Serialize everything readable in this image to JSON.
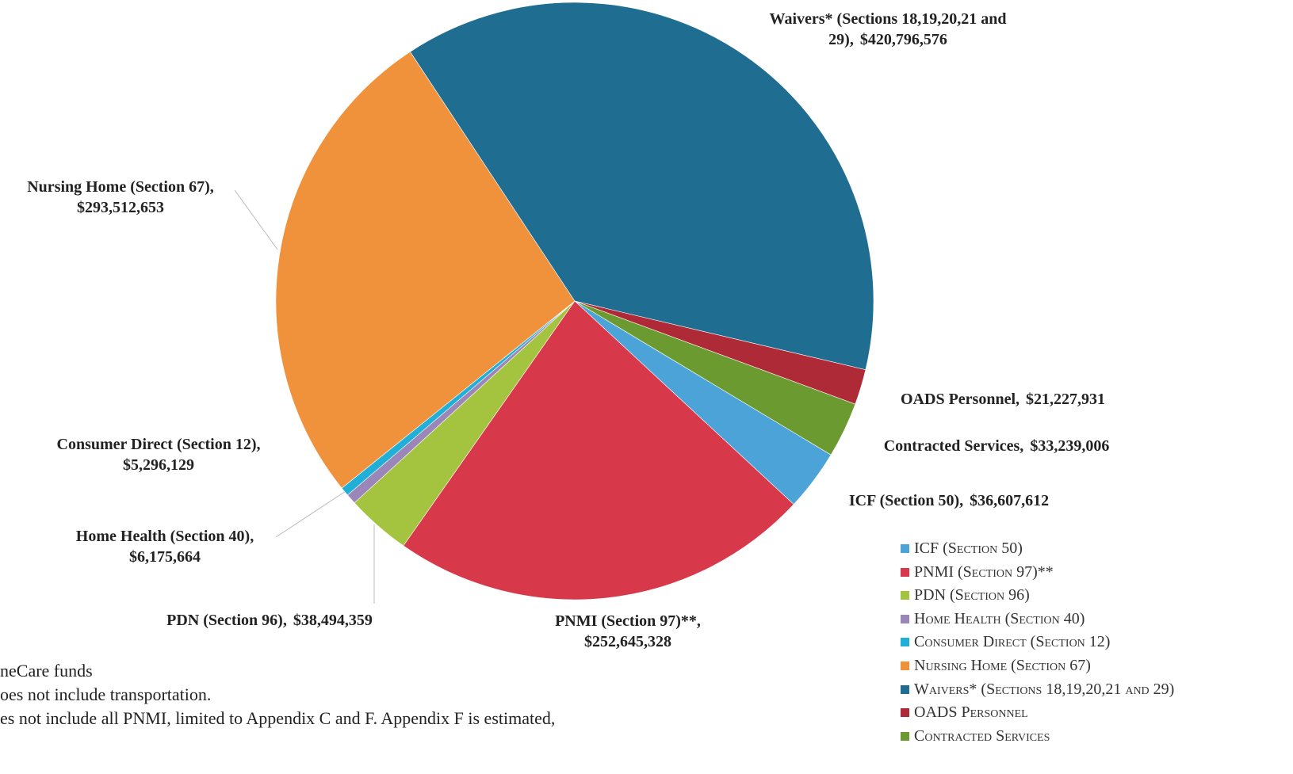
{
  "chart_data": {
    "type": "pie",
    "series": [
      {
        "name": "ICF (Section 50)",
        "color": "#4ba3d8"
      },
      {
        "name": "PNMI (Section 97)**",
        "color": "#d8394a"
      },
      {
        "name": "PDN (Section 96)",
        "color": "#a4c33e"
      },
      {
        "name": "Home Health (Section 40)",
        "color": "#9a86b9"
      },
      {
        "name": "Consumer Direct (Section 12)",
        "color": "#20afd6"
      },
      {
        "name": "Nursing Home (Section 67)",
        "color": "#f0913b"
      },
      {
        "name": "Waivers* (Sections 18,19,20,21 and 29)",
        "color": "#1f6e91"
      },
      {
        "name": "OADS Personnel",
        "color": "#ae2a37"
      },
      {
        "name": "Contracted Services",
        "color": "#6b9a30"
      }
    ],
    "values": [
      36607612,
      252645328,
      38494359,
      6175664,
      5296129,
      293512653,
      420796576,
      21227931,
      33239006
    ],
    "value_labels": [
      "$36,607,612",
      "$252,645,328",
      "$38,494,359",
      "$6,175,664",
      "$5,296,129",
      "$293,512,653",
      "$420,796,576",
      "$21,227,931",
      "$33,239,006"
    ],
    "label_names": [
      "ICF (Section 50),",
      "PNMI (Section 97)**,",
      "PDN (Section 96),",
      "Home Health (Section 40),",
      "Consumer Direct (Section 12),",
      "Nursing Home (Section 67),",
      "Waivers* (Sections 18,19,20,21 and 29),",
      "OADS Personnel,",
      "Contracted Services,"
    ],
    "notes": [
      "neCare funds",
      "oes not include transportation.",
      "es not include all PNMI, limited to Appendix C and F. Appendix F is estimated,"
    ]
  }
}
